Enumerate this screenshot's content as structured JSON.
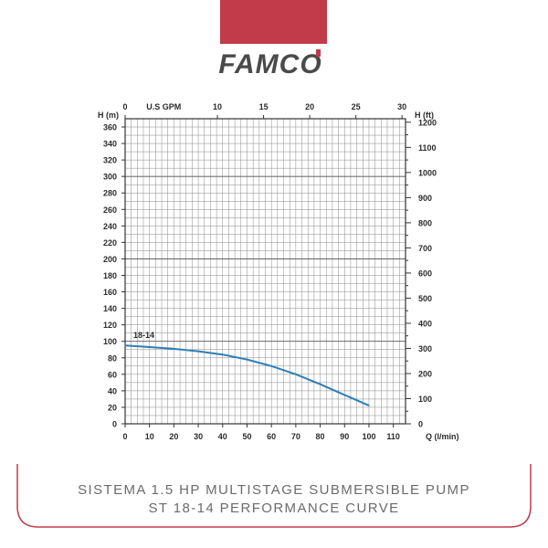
{
  "brand": {
    "name": "FAMCO",
    "accent_color": "#c23b4a",
    "text_color": "#4a4a4a"
  },
  "caption": {
    "line1": "SISTEMA 1.5 HP MULTISTAGE SUBMERSIBLE PUMP",
    "line2": "ST 18-14 PERFORMANCE CURVE"
  },
  "chart_data": {
    "type": "line",
    "title": "",
    "grid": true,
    "axes": {
      "x_bottom": {
        "label": "Q (l/min)",
        "min": 0,
        "max": 115,
        "ticks": [
          0,
          10,
          20,
          30,
          40,
          50,
          60,
          70,
          80,
          90,
          100,
          110
        ]
      },
      "x_top": {
        "label": "U.S GPM",
        "min": 0,
        "max": 30.38,
        "ticks": [
          0,
          10,
          15,
          20,
          25,
          30
        ]
      },
      "y_left": {
        "label": "H (m)",
        "min": 0,
        "max": 370,
        "ticks": [
          0,
          20,
          40,
          60,
          80,
          100,
          120,
          140,
          160,
          180,
          200,
          220,
          240,
          260,
          280,
          300,
          320,
          340,
          360
        ]
      },
      "y_right": {
        "label": "H (ft)",
        "min": 0,
        "max": 1214,
        "ticks": [
          0,
          100,
          200,
          300,
          400,
          500,
          600,
          700,
          800,
          900,
          1000,
          1100,
          1200
        ]
      }
    },
    "series": [
      {
        "name": "18-14",
        "color": "#2b7fb8",
        "x": [
          0,
          10,
          20,
          30,
          40,
          50,
          60,
          70,
          80,
          90,
          100
        ],
        "y": [
          95,
          93,
          91,
          88,
          84,
          78,
          70,
          60,
          48,
          35,
          22
        ]
      }
    ]
  }
}
